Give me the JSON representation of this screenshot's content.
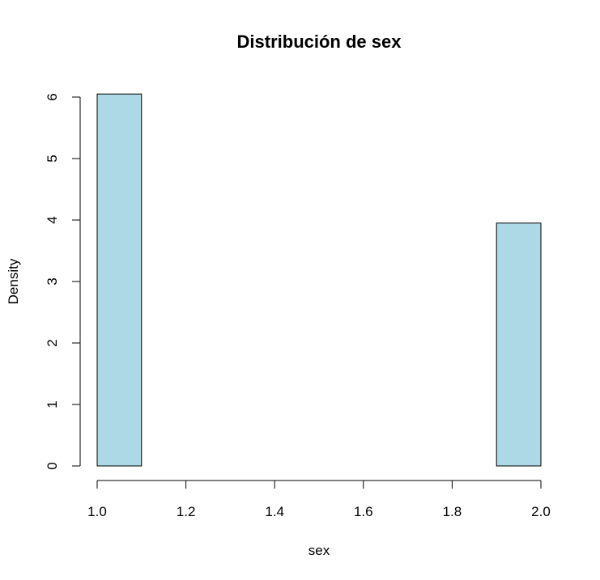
{
  "chart_data": {
    "type": "bar",
    "title": "Distribución de sex",
    "xlabel": "sex",
    "ylabel": "Density",
    "xlim": [
      1.0,
      2.0
    ],
    "ylim": [
      0,
      6
    ],
    "x_ticks": [
      1.0,
      1.2,
      1.4,
      1.6,
      1.8,
      2.0
    ],
    "x_tick_labels": [
      "1.0",
      "1.2",
      "1.4",
      "1.6",
      "1.8",
      "2.0"
    ],
    "y_ticks": [
      0,
      1,
      2,
      3,
      4,
      5,
      6
    ],
    "y_tick_labels": [
      "0",
      "1",
      "2",
      "3",
      "4",
      "5",
      "6"
    ],
    "bin_edges": [
      1.0,
      1.1,
      1.2,
      1.3,
      1.4,
      1.5,
      1.6,
      1.7,
      1.8,
      1.9,
      2.0
    ],
    "densities": [
      6.05,
      0,
      0,
      0,
      0,
      0,
      0,
      0,
      0,
      3.95
    ],
    "bar_color": "#add8e6",
    "grid": false
  }
}
